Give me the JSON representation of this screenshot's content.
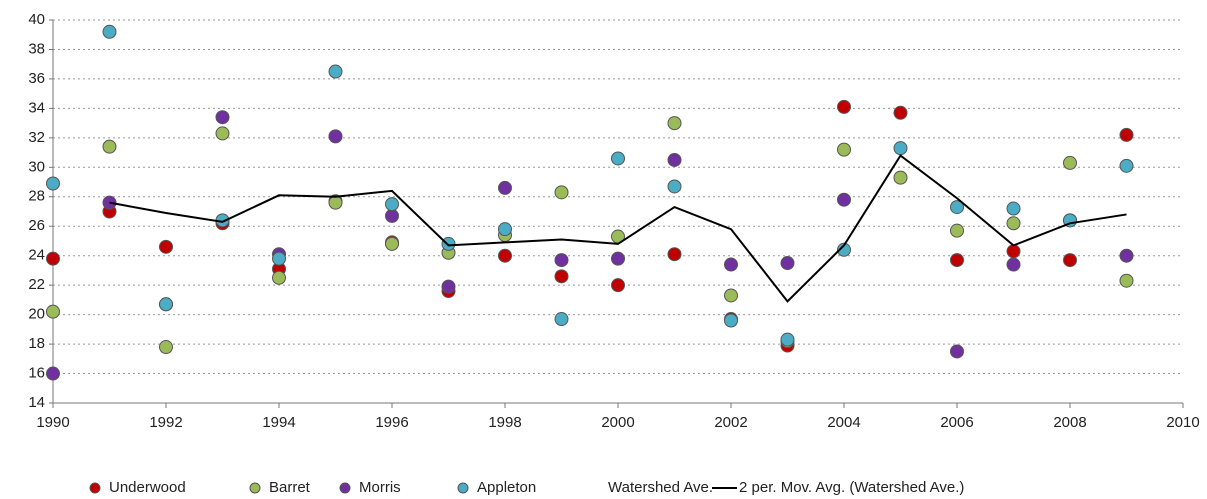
{
  "chart_data": {
    "type": "scatter",
    "x": [
      1990,
      1991,
      1992,
      1993,
      1994,
      1995,
      1996,
      1997,
      1998,
      1999,
      2000,
      2001,
      2002,
      2003,
      2004,
      2005,
      2006,
      2007,
      2008,
      2009
    ],
    "series": [
      {
        "name": "Underwood",
        "color": "#c00000",
        "values": [
          23.8,
          27.0,
          24.6,
          26.2,
          23.1,
          27.7,
          24.9,
          21.6,
          24.0,
          22.6,
          22.0,
          24.1,
          19.7,
          17.9,
          34.1,
          33.7,
          23.7,
          24.3,
          23.7,
          32.2
        ]
      },
      {
        "name": "Barret",
        "color": "#9bbb59",
        "values": [
          20.2,
          31.4,
          17.8,
          32.3,
          22.5,
          27.6,
          24.8,
          24.2,
          25.4,
          28.3,
          25.3,
          33.0,
          21.3,
          18.2,
          31.2,
          29.3,
          25.7,
          26.2,
          30.3,
          22.3
        ]
      },
      {
        "name": "Morris",
        "color": "#7030a0",
        "values": [
          16.0,
          27.6,
          20.7,
          33.4,
          24.1,
          32.1,
          26.7,
          21.9,
          28.6,
          23.7,
          23.8,
          30.5,
          23.4,
          23.5,
          27.8,
          null,
          17.5,
          23.4,
          26.4,
          24.0
        ]
      },
      {
        "name": "Appleton",
        "color": "#4bacc6",
        "values": [
          28.9,
          39.2,
          20.7,
          26.4,
          23.8,
          36.5,
          27.5,
          24.8,
          25.8,
          19.7,
          30.6,
          28.7,
          19.6,
          18.3,
          24.4,
          31.3,
          27.3,
          27.2,
          26.4,
          30.1
        ]
      }
    ],
    "watershed_series": {
      "name": "Watershed Ave."
    },
    "trend": {
      "name": "2 per. Mov. Avg. (Watershed Ave.)",
      "color": "#000000",
      "x": [
        1991,
        1992,
        1993,
        1994,
        1995,
        1996,
        1997,
        1998,
        1999,
        2000,
        2001,
        2002,
        2003,
        2004,
        2005,
        2006,
        2007,
        2008,
        2009
      ],
      "values": [
        27.6,
        26.9,
        26.3,
        28.1,
        28.0,
        28.4,
        24.7,
        24.9,
        25.1,
        24.8,
        27.3,
        25.8,
        20.9,
        24.7,
        30.8,
        27.9,
        24.7,
        26.2,
        26.8
      ]
    },
    "xlim": [
      1990,
      2010
    ],
    "xticks": [
      1990,
      1992,
      1994,
      1996,
      1998,
      2000,
      2002,
      2004,
      2006,
      2008,
      2010
    ],
    "ylim": [
      14,
      40
    ],
    "yticks": [
      14,
      16,
      18,
      20,
      22,
      24,
      26,
      28,
      30,
      32,
      34,
      36,
      38,
      40
    ],
    "grid": true
  }
}
